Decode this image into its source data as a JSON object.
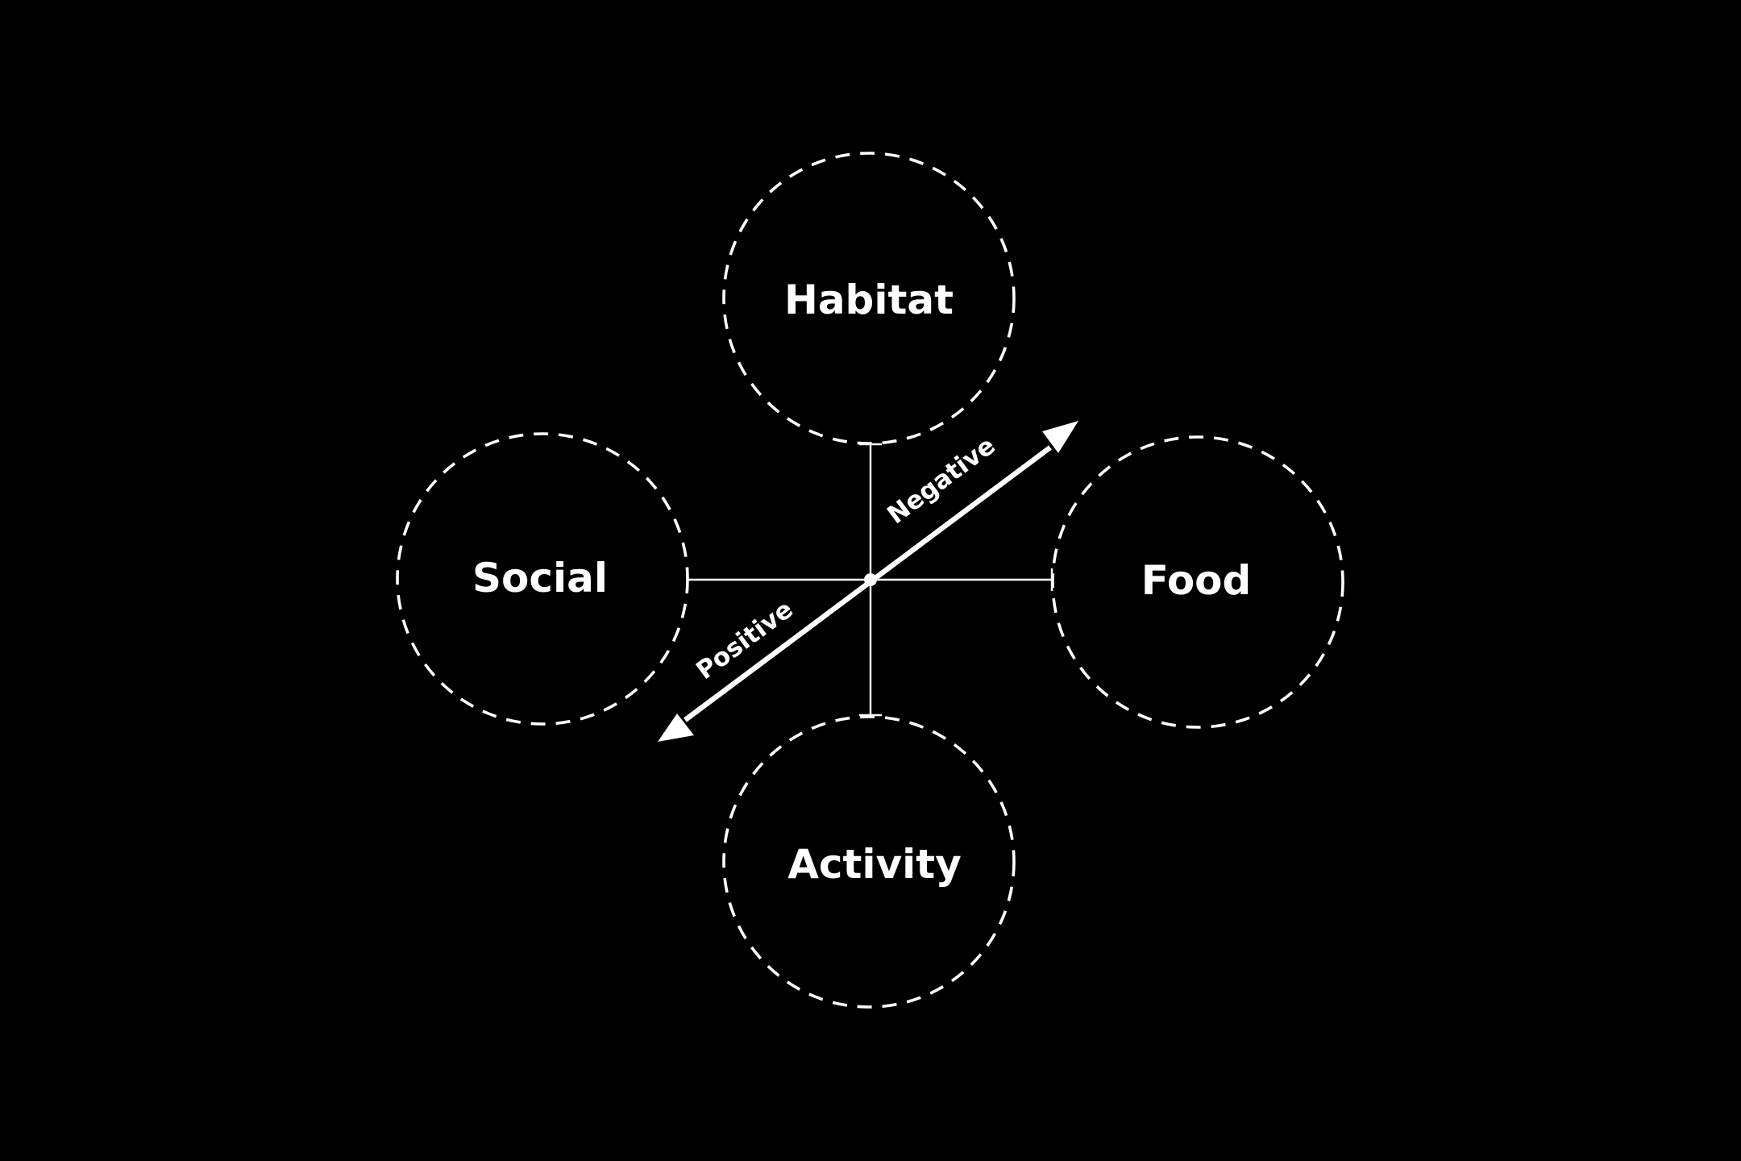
{
  "colors": {
    "background": "#000000",
    "foreground": "#ffffff"
  },
  "nodes": {
    "habitat": {
      "label": "Habitat"
    },
    "social": {
      "label": "Social"
    },
    "food": {
      "label": "Food"
    },
    "activity": {
      "label": "Activity"
    }
  },
  "axis": {
    "negative_label": "Negative",
    "positive_label": "Positive"
  }
}
